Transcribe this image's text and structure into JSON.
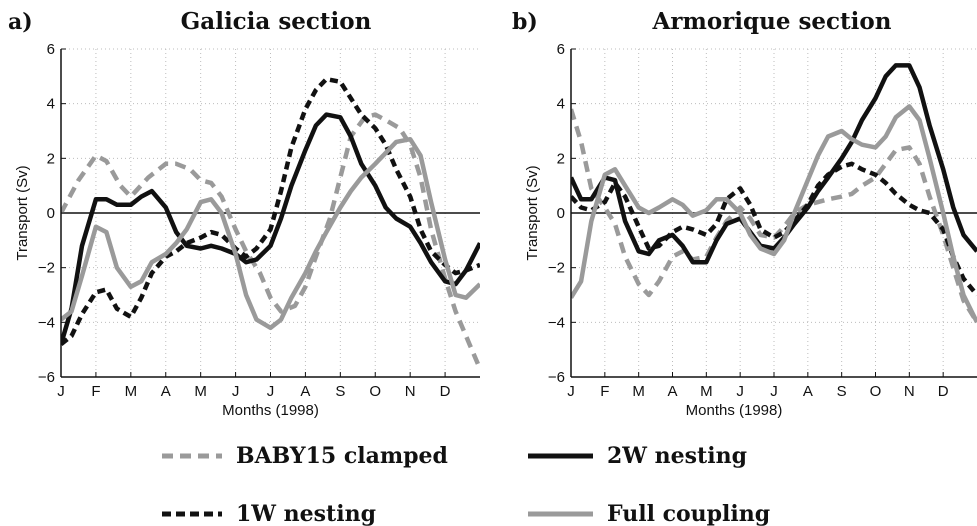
{
  "chart_data": [
    {
      "type": "line",
      "panel_letter": "a)",
      "title": "Galicia section",
      "xlabel": "Months (1998)",
      "ylabel": "Transport (Sv)",
      "xlim": [
        0,
        12
      ],
      "ylim": [
        -6,
        6
      ],
      "xticks": [
        "J",
        "F",
        "M",
        "A",
        "M",
        "J",
        "J",
        "A",
        "S",
        "O",
        "N",
        "D"
      ],
      "yticks": [
        -6,
        -4,
        -2,
        0,
        2,
        4,
        6
      ],
      "grid": true,
      "zero_line": true,
      "series": [
        {
          "name": "BABY15 clamped",
          "color": "#9a9a9a",
          "dash": "dashed",
          "x": [
            0,
            0.5,
            1,
            1.3,
            1.7,
            2,
            2.5,
            3,
            3.3,
            3.7,
            4,
            4.3,
            4.6,
            5,
            5.3,
            5.7,
            6,
            6.3,
            6.7,
            7,
            7.3,
            7.7,
            8,
            8.3,
            8.7,
            9,
            9.3,
            9.7,
            10,
            10.3,
            10.6,
            11,
            11.3,
            11.7,
            12
          ],
          "y": [
            0,
            1.2,
            2.1,
            1.9,
            1,
            0.6,
            1.3,
            1.8,
            1.8,
            1.6,
            1.2,
            1.1,
            0.6,
            -0.6,
            -1.4,
            -2.2,
            -3.1,
            -3.6,
            -3.4,
            -2.7,
            -1.6,
            -0.2,
            1.3,
            2.8,
            3.5,
            3.6,
            3.4,
            3.1,
            2.5,
            1.3,
            -0.6,
            -2.4,
            -3.6,
            -4.8,
            -5.7
          ]
        },
        {
          "name": "1W nesting",
          "color": "#111111",
          "dash": "dotted",
          "x": [
            0,
            0.3,
            0.6,
            1,
            1.3,
            1.6,
            2,
            2.3,
            2.6,
            3,
            3.3,
            3.6,
            4,
            4.3,
            4.6,
            5,
            5.3,
            5.6,
            6,
            6.3,
            6.6,
            7,
            7.3,
            7.6,
            8,
            8.3,
            8.6,
            9,
            9.3,
            9.6,
            10,
            10.3,
            10.6,
            11,
            11.3,
            11.6,
            12
          ],
          "y": [
            -4.8,
            -4.5,
            -3.7,
            -2.9,
            -2.8,
            -3.5,
            -3.8,
            -3.1,
            -2.2,
            -1.6,
            -1.4,
            -1.1,
            -0.9,
            -0.7,
            -0.8,
            -1.3,
            -1.6,
            -1.3,
            -0.6,
            0.8,
            2.4,
            3.8,
            4.5,
            4.9,
            4.8,
            4.2,
            3.6,
            3.1,
            2.5,
            1.6,
            0.6,
            -0.6,
            -1.4,
            -1.9,
            -2.2,
            -2.1,
            -1.9
          ]
        },
        {
          "name": "2W nesting",
          "color": "#111111",
          "dash": "solid",
          "x": [
            0,
            0.3,
            0.6,
            1,
            1.3,
            1.6,
            2,
            2.3,
            2.6,
            3,
            3.3,
            3.6,
            4,
            4.3,
            4.6,
            5,
            5.3,
            5.6,
            6,
            6.3,
            6.6,
            7,
            7.3,
            7.6,
            8,
            8.3,
            8.6,
            9,
            9.3,
            9.6,
            10,
            10.3,
            10.6,
            11,
            11.3,
            11.6,
            12
          ],
          "y": [
            -4.8,
            -3.5,
            -1.2,
            0.5,
            0.5,
            0.3,
            0.3,
            0.6,
            0.8,
            0.2,
            -0.7,
            -1.2,
            -1.3,
            -1.2,
            -1.3,
            -1.5,
            -1.8,
            -1.7,
            -1.2,
            -0.2,
            1,
            2.3,
            3.2,
            3.6,
            3.5,
            2.8,
            1.8,
            1,
            0.2,
            -0.2,
            -0.5,
            -1.1,
            -1.8,
            -2.5,
            -2.6,
            -2.1,
            -1.1
          ]
        },
        {
          "name": "Full coupling",
          "color": "#9a9a9a",
          "dash": "solid",
          "x": [
            0,
            0.3,
            0.6,
            1,
            1.3,
            1.6,
            2,
            2.3,
            2.6,
            3,
            3.3,
            3.6,
            4,
            4.3,
            4.6,
            5,
            5.3,
            5.6,
            6,
            6.3,
            6.6,
            7,
            7.3,
            7.6,
            8,
            8.3,
            8.6,
            9,
            9.3,
            9.6,
            10,
            10.3,
            10.6,
            11,
            11.3,
            11.6,
            12
          ],
          "y": [
            -3.9,
            -3.6,
            -2.3,
            -0.5,
            -0.7,
            -2,
            -2.7,
            -2.5,
            -1.8,
            -1.5,
            -1.1,
            -0.6,
            0.4,
            0.5,
            0,
            -1.5,
            -3,
            -3.9,
            -4.2,
            -3.9,
            -3.1,
            -2.2,
            -1.4,
            -0.7,
            0.2,
            0.8,
            1.3,
            1.8,
            2.2,
            2.6,
            2.7,
            2.1,
            0.4,
            -1.7,
            -3,
            -3.1,
            -2.6
          ]
        }
      ]
    },
    {
      "type": "line",
      "panel_letter": "b)",
      "title": "Armorique section",
      "xlabel": "Months (1998)",
      "ylabel": "Transport (Sv)",
      "xlim": [
        0,
        12
      ],
      "ylim": [
        -6,
        6
      ],
      "xticks": [
        "J",
        "F",
        "M",
        "A",
        "M",
        "J",
        "J",
        "A",
        "S",
        "O",
        "N",
        "D"
      ],
      "yticks": [
        -6,
        -4,
        -2,
        0,
        2,
        4,
        6
      ],
      "grid": true,
      "zero_line": true,
      "series": [
        {
          "name": "BABY15 clamped",
          "color": "#9a9a9a",
          "dash": "dashed",
          "x": [
            0,
            0.3,
            0.6,
            1,
            1.3,
            1.6,
            2,
            2.3,
            2.6,
            3,
            3.3,
            3.6,
            4,
            4.3,
            4.6,
            5,
            5.3,
            5.6,
            6,
            6.3,
            6.6,
            7,
            7.3,
            7.6,
            8,
            8.3,
            8.6,
            9,
            9.3,
            9.6,
            10,
            10.3,
            10.6,
            11,
            11.3,
            11.6,
            12
          ],
          "y": [
            3.8,
            2.6,
            0.9,
            0.2,
            -0.4,
            -1.6,
            -2.6,
            -3,
            -2.5,
            -1.6,
            -1.4,
            -1.7,
            -1.6,
            -0.9,
            -0.3,
            0.2,
            -0.2,
            -0.8,
            -0.9,
            -0.5,
            0,
            0.3,
            0.4,
            0.5,
            0.6,
            0.7,
            1,
            1.3,
            1.8,
            2.3,
            2.4,
            1.8,
            0.6,
            -0.8,
            -2,
            -3.2,
            -4
          ]
        },
        {
          "name": "1W nesting",
          "color": "#111111",
          "dash": "dotted",
          "x": [
            0,
            0.3,
            0.6,
            1,
            1.3,
            1.6,
            2,
            2.3,
            2.6,
            3,
            3.3,
            3.6,
            4,
            4.3,
            4.6,
            5,
            5.3,
            5.6,
            6,
            6.3,
            6.6,
            7,
            7.3,
            7.6,
            8,
            8.3,
            8.6,
            9,
            9.3,
            9.6,
            10,
            10.3,
            10.6,
            11,
            11.3,
            11.6,
            12
          ],
          "y": [
            0.6,
            0.2,
            0.1,
            0.4,
            1.1,
            0.6,
            -0.5,
            -1.3,
            -1.2,
            -0.7,
            -0.5,
            -0.6,
            -0.8,
            -0.4,
            0.5,
            0.9,
            0.3,
            -0.6,
            -0.9,
            -0.7,
            -0.3,
            0.3,
            1,
            1.4,
            1.7,
            1.8,
            1.6,
            1.4,
            1.1,
            0.7,
            0.3,
            0.1,
            0,
            -0.6,
            -1.6,
            -2.4,
            -3
          ]
        },
        {
          "name": "2W nesting",
          "color": "#111111",
          "dash": "solid",
          "x": [
            0,
            0.3,
            0.6,
            1,
            1.3,
            1.6,
            2,
            2.3,
            2.6,
            3,
            3.3,
            3.6,
            4,
            4.3,
            4.6,
            5,
            5.3,
            5.6,
            6,
            6.3,
            6.6,
            7,
            7.3,
            7.6,
            8,
            8.3,
            8.6,
            9,
            9.3,
            9.6,
            10,
            10.3,
            10.6,
            11,
            11.3,
            11.6,
            12
          ],
          "y": [
            1.3,
            0.5,
            0.5,
            1.3,
            1.2,
            -0.3,
            -1.4,
            -1.5,
            -1,
            -0.8,
            -1.2,
            -1.8,
            -1.8,
            -1,
            -0.4,
            -0.2,
            -0.7,
            -1.2,
            -1.3,
            -0.9,
            -0.4,
            0.2,
            0.8,
            1.3,
            2,
            2.6,
            3.4,
            4.2,
            5,
            5.4,
            5.4,
            4.6,
            3.2,
            1.6,
            0.2,
            -0.8,
            -1.4
          ]
        },
        {
          "name": "Full coupling",
          "color": "#9a9a9a",
          "dash": "solid",
          "x": [
            0,
            0.3,
            0.6,
            1,
            1.3,
            1.6,
            2,
            2.3,
            2.6,
            3,
            3.3,
            3.6,
            4,
            4.3,
            4.6,
            5,
            5.3,
            5.6,
            6,
            6.3,
            6.6,
            7,
            7.3,
            7.6,
            8,
            8.3,
            8.6,
            9,
            9.3,
            9.6,
            10,
            10.3,
            10.6,
            11,
            11.3,
            11.6,
            12
          ],
          "y": [
            -3.1,
            -2.5,
            -0.3,
            1.4,
            1.6,
            1,
            0.2,
            0,
            0.2,
            0.5,
            0.3,
            -0.1,
            0.1,
            0.5,
            0.5,
            0,
            -0.8,
            -1.3,
            -1.5,
            -1,
            0,
            1.2,
            2.1,
            2.8,
            3,
            2.7,
            2.5,
            2.4,
            2.8,
            3.5,
            3.9,
            3.4,
            2,
            0,
            -1.6,
            -3,
            -4
          ]
        }
      ]
    }
  ],
  "legend": [
    {
      "label": "BABY15 clamped",
      "color": "#9a9a9a",
      "dash": "dashed"
    },
    {
      "label": "2W nesting",
      "color": "#111111",
      "dash": "solid"
    },
    {
      "label": "1W nesting",
      "color": "#111111",
      "dash": "dotted"
    },
    {
      "label": "Full coupling",
      "color": "#9a9a9a",
      "dash": "solid"
    }
  ]
}
